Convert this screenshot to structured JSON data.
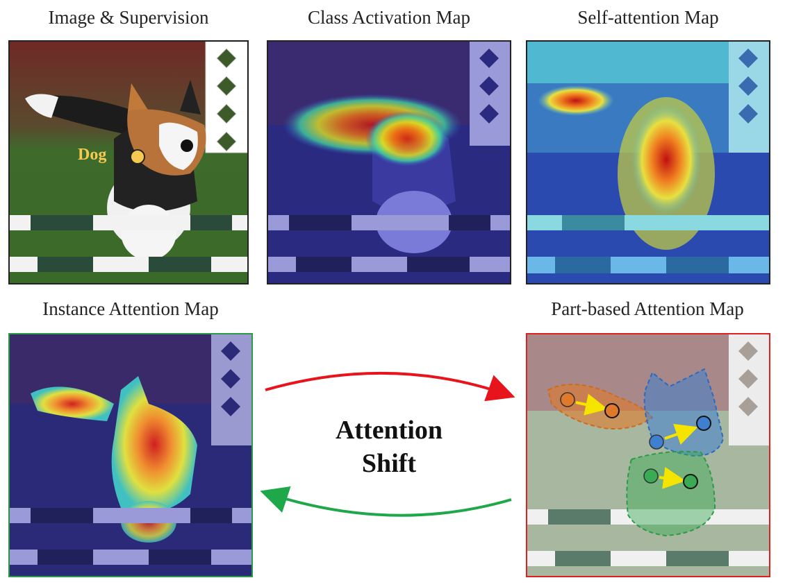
{
  "captions": {
    "image_supervision": "Image & Supervision",
    "cam": "Class Activation Map",
    "self_attention": "Self-attention Map",
    "instance_attention": "Instance Attention Map",
    "part_attention": "Part-based Attention Map"
  },
  "point_label": "Dog",
  "center": {
    "line1": "Attention",
    "line2": "Shift"
  },
  "colors": {
    "instance_border": "#2a9a45",
    "part_border": "#e02020",
    "arrow_top": "#e8141c",
    "arrow_bottom": "#1fa84a",
    "point_yellow": "#f6c951",
    "orange_part": "#e07a2a",
    "blue_part": "#3f7fd0",
    "green_part": "#3aaa55",
    "shift_arrow": "#f5e400"
  }
}
